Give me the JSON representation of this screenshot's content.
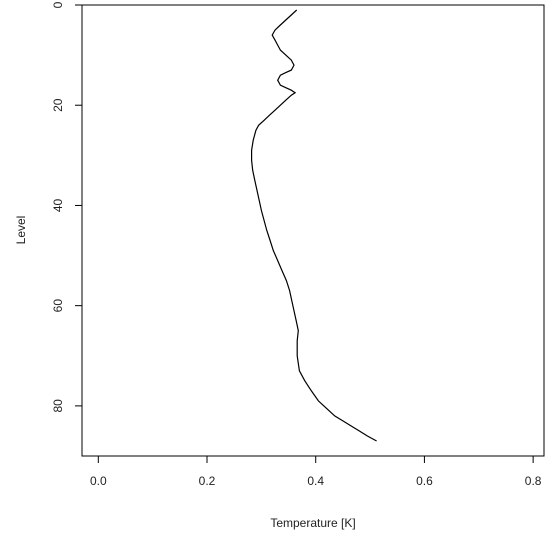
{
  "chart_data": {
    "type": "line",
    "title": "",
    "xlabel": "Temperature [K]",
    "ylabel": "Level",
    "xlim": [
      -0.03,
      0.82
    ],
    "ylim": [
      0,
      90
    ],
    "y_reversed": true,
    "x_ticks": [
      "0.0",
      "0.2",
      "0.4",
      "0.6",
      "0.8"
    ],
    "y_ticks": [
      "0",
      "20",
      "40",
      "60",
      "80"
    ],
    "grid": false,
    "legend": "none",
    "line_color": "#000000",
    "series": [
      {
        "x": [
          0.365,
          0.355,
          0.345,
          0.335,
          0.325,
          0.32,
          0.325,
          0.33,
          0.335,
          0.345,
          0.355,
          0.36,
          0.355,
          0.345,
          0.335,
          0.33,
          0.335,
          0.345,
          0.355,
          0.362,
          0.355,
          0.345,
          0.335,
          0.325,
          0.315,
          0.305,
          0.295,
          0.29,
          0.285,
          0.282,
          0.282,
          0.284,
          0.288,
          0.292,
          0.296,
          0.3,
          0.305,
          0.31,
          0.316,
          0.322,
          0.33,
          0.338,
          0.346,
          0.352,
          0.356,
          0.36,
          0.364,
          0.368,
          0.366,
          0.366,
          0.37,
          0.38,
          0.392,
          0.405,
          0.42,
          0.435,
          0.45,
          0.465,
          0.48,
          0.495,
          0.512
        ],
        "y": [
          1,
          2,
          3,
          4,
          5,
          6,
          7,
          8,
          9,
          10,
          11,
          12,
          13,
          13.5,
          14,
          15,
          16,
          16.5,
          17,
          17.5,
          18,
          19,
          20,
          21,
          22,
          23,
          24,
          25,
          27,
          29,
          31,
          33,
          35,
          37,
          39,
          41,
          43,
          45,
          47,
          49,
          51,
          53,
          55,
          57,
          59,
          61,
          63,
          65,
          67,
          70,
          73,
          75,
          77,
          79,
          80.5,
          82,
          83,
          84,
          85,
          86,
          87
        ]
      }
    ]
  }
}
